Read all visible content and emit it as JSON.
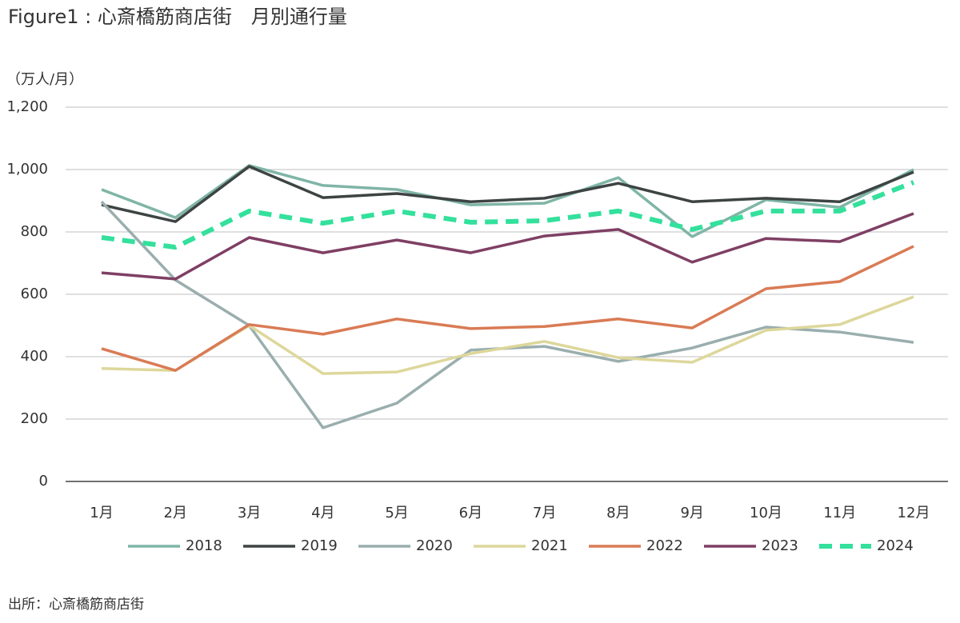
{
  "chart_data": {
    "type": "line",
    "title": "Figure1 : 心斎橋筋商店街　月別通行量",
    "y_label": "（万人/月）",
    "source": "出所：心斎橋筋商店街",
    "categories": [
      "1月",
      "2月",
      "3月",
      "4月",
      "5月",
      "6月",
      "7月",
      "8月",
      "9月",
      "10月",
      "11月",
      "12月"
    ],
    "ylim": [
      0,
      1200
    ],
    "yticks": [
      0,
      200,
      400,
      600,
      800,
      {
        "value": 1000,
        "label": "1,000"
      },
      {
        "value": 1200,
        "label": "1,200"
      }
    ],
    "grid": true,
    "legend": "bottom",
    "series": [
      {
        "name": "2018",
        "color": "#7fb5a6",
        "values": [
          936,
          846,
          1013,
          949,
          936,
          887,
          892,
          974,
          785,
          903,
          879,
          1000
        ]
      },
      {
        "name": "2019",
        "color": "#3d4443",
        "values": [
          887,
          833,
          1010,
          910,
          923,
          897,
          908,
          956,
          897,
          908,
          897,
          992
        ]
      },
      {
        "name": "2020",
        "color": "#9aaeae",
        "values": [
          897,
          646,
          500,
          172,
          251,
          421,
          433,
          385,
          428,
          495,
          479,
          446
        ]
      },
      {
        "name": "2021",
        "color": "#ddd79b",
        "values": [
          362,
          356,
          500,
          346,
          351,
          410,
          449,
          397,
          382,
          485,
          503,
          592
        ]
      },
      {
        "name": "2022",
        "color": "#d97b55",
        "values": [
          426,
          356,
          503,
          472,
          521,
          490,
          497,
          521,
          492,
          618,
          641,
          754
        ]
      },
      {
        "name": "2023",
        "color": "#7f3f64",
        "values": [
          669,
          649,
          782,
          733,
          774,
          733,
          787,
          808,
          703,
          779,
          769,
          859
        ]
      },
      {
        "name": "2024",
        "color": "#33e09c",
        "dashed": true,
        "values": [
          782,
          751,
          867,
          828,
          867,
          831,
          836,
          867,
          808,
          867,
          867,
          959
        ]
      }
    ]
  }
}
